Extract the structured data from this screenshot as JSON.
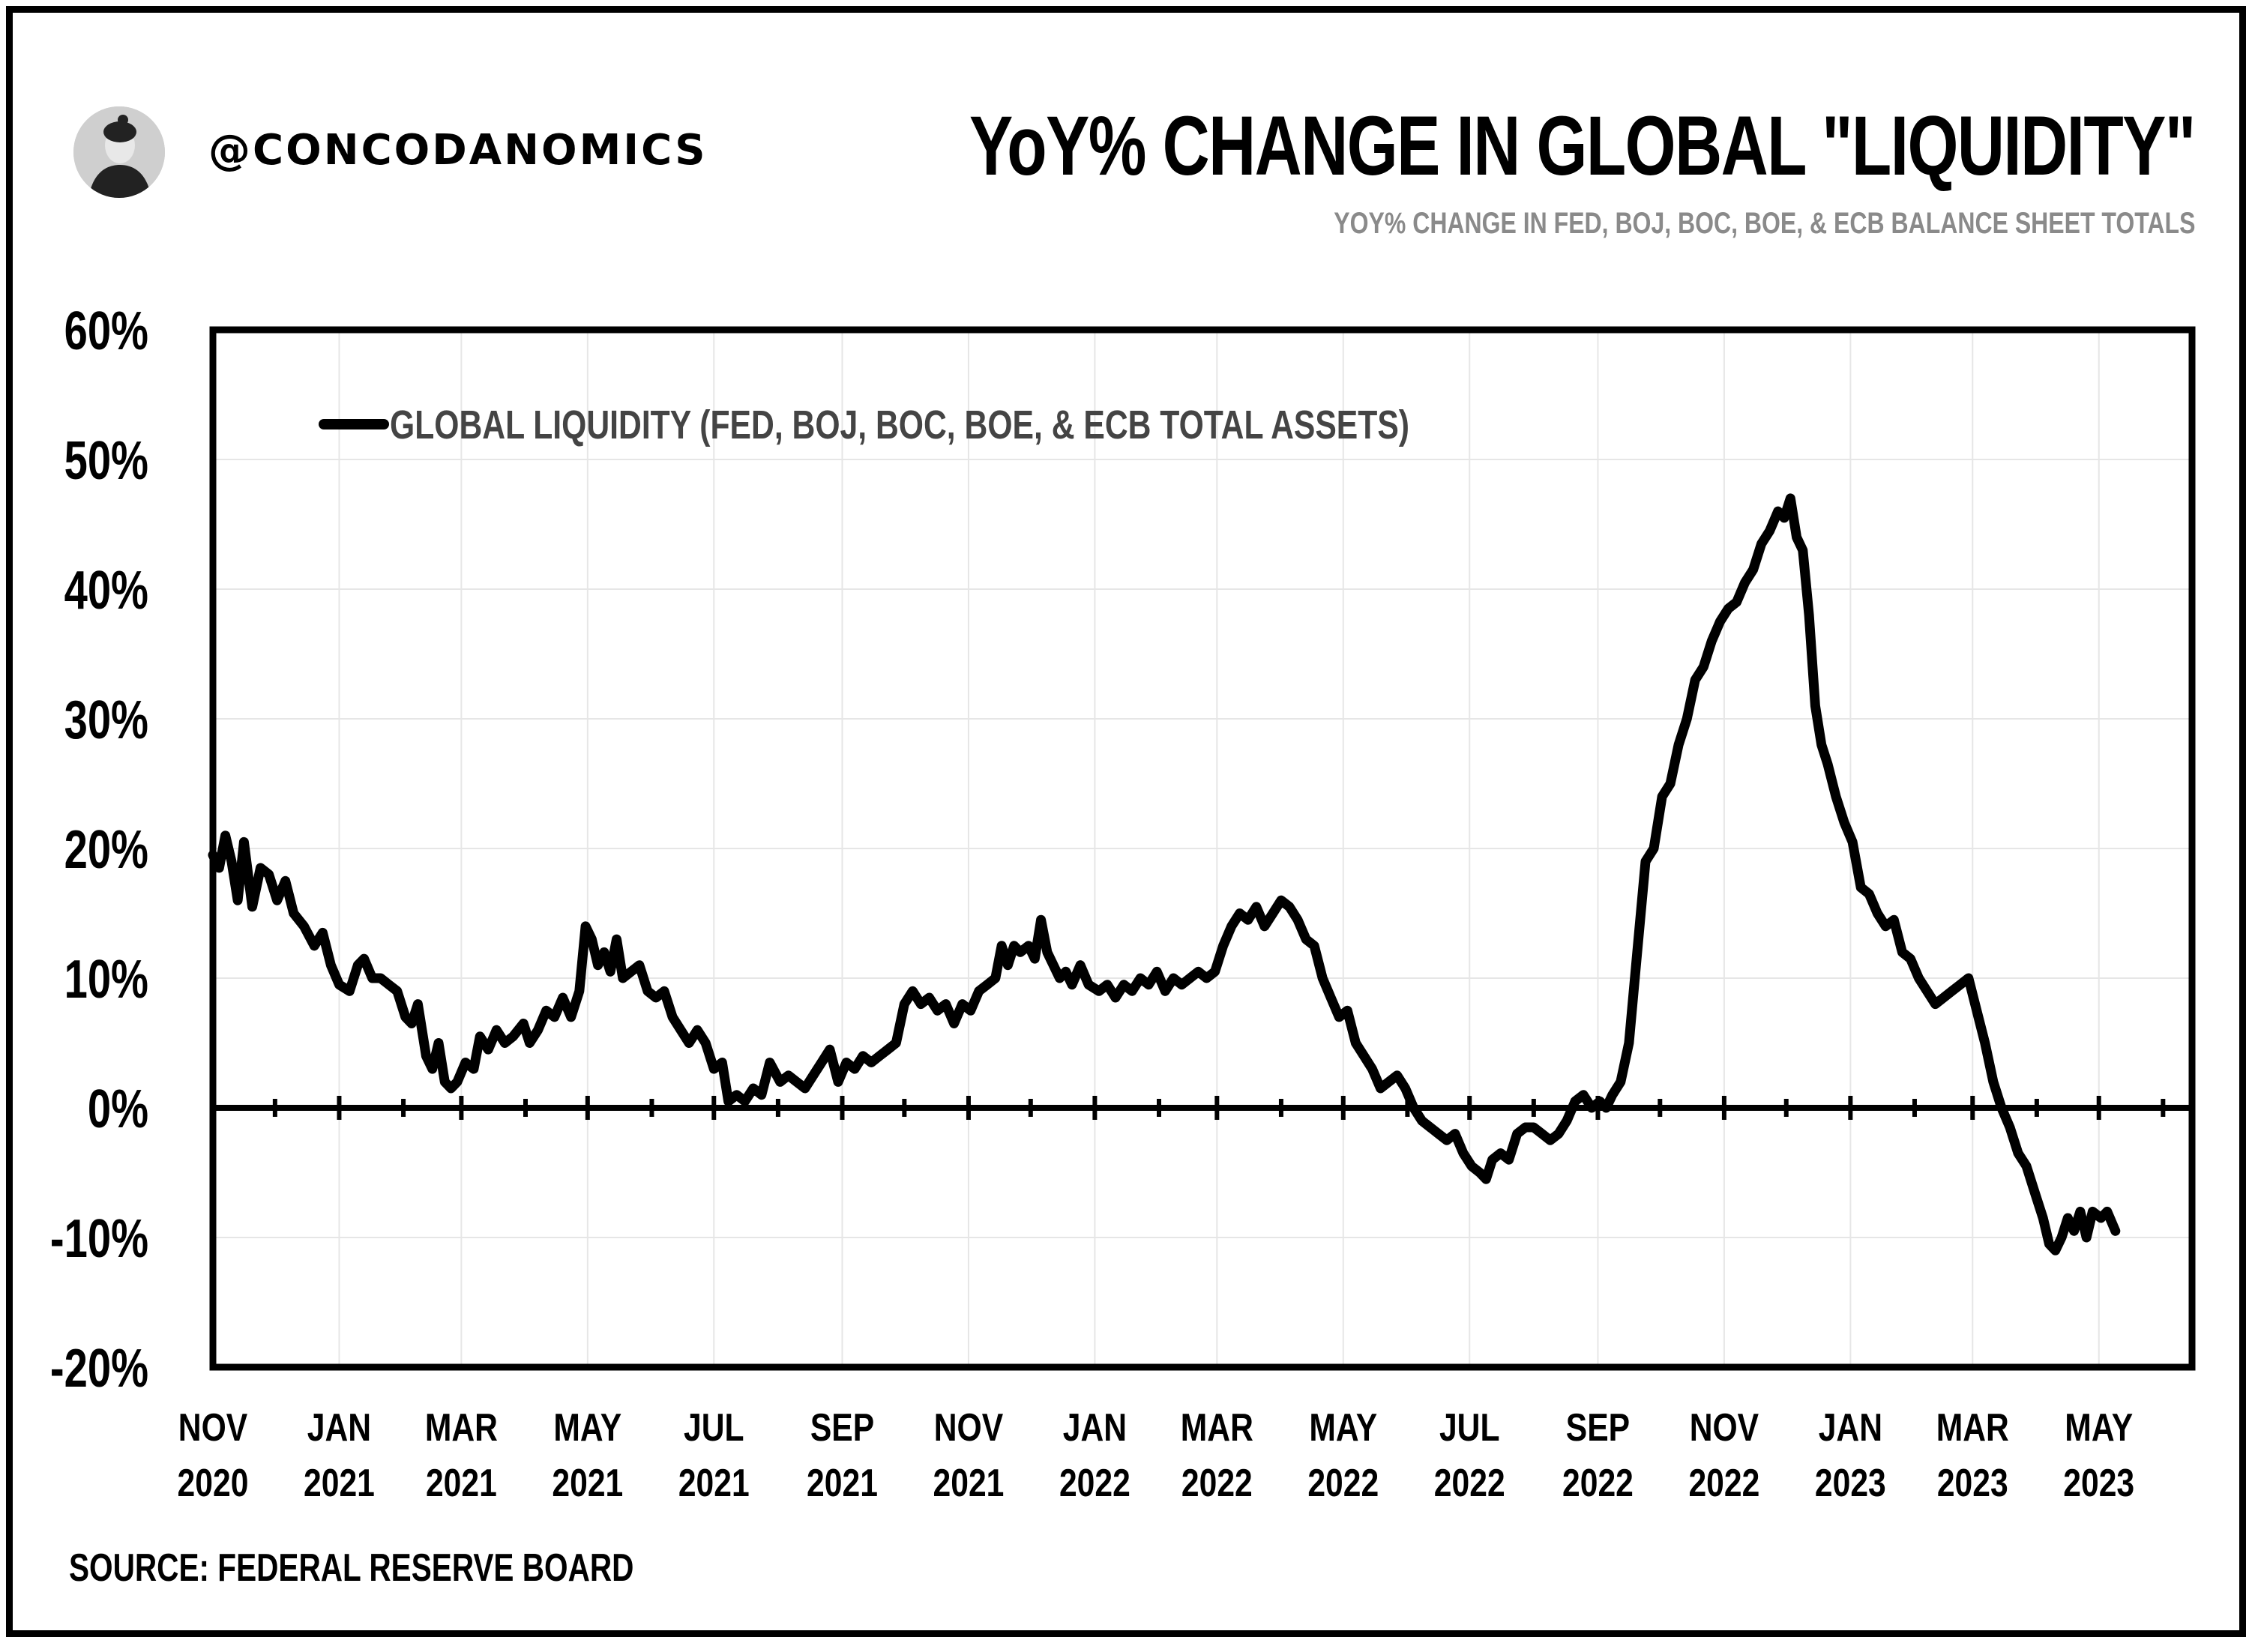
{
  "header": {
    "handle": "@CONCODANOMICS",
    "title": "YoY% CHANGE IN GLOBAL \"LIQUIDITY\"",
    "subtitle": "YOY% CHANGE IN FED, BOJ, BOC, BOE, & ECB BALANCE SHEET TOTALS"
  },
  "footer": {
    "source": "SOURCE: FEDERAL RESERVE BOARD"
  },
  "colors": {
    "line": "#000000",
    "grid": "#e6e6e6",
    "legend_text": "#444444",
    "subtitle": "#8a8a8a"
  },
  "chart_data": {
    "type": "line",
    "title": "YoY% CHANGE IN GLOBAL \"LIQUIDITY\"",
    "subtitle": "YOY% CHANGE IN FED, BOJ, BOC, BOE, & ECB BALANCE SHEET TOTALS",
    "ylim": [
      -20,
      60
    ],
    "yticks": [
      -20,
      -10,
      0,
      10,
      20,
      30,
      40,
      50,
      60
    ],
    "ytick_labels": [
      "-20%",
      "-10%",
      "0%",
      "10%",
      "20%",
      "30%",
      "40%",
      "50%",
      "60%"
    ],
    "xlim": [
      "2020-11-01",
      "2023-06-15"
    ],
    "xticks": [
      "2020-11-01",
      "2021-01-01",
      "2021-03-01",
      "2021-05-01",
      "2021-07-01",
      "2021-09-01",
      "2021-11-01",
      "2022-01-01",
      "2022-03-01",
      "2022-05-01",
      "2022-07-01",
      "2022-09-01",
      "2022-11-01",
      "2023-01-01",
      "2023-03-01",
      "2023-05-01"
    ],
    "xtick_labels": [
      [
        "NOV",
        "2020"
      ],
      [
        "JAN",
        "2021"
      ],
      [
        "MAR",
        "2021"
      ],
      [
        "MAY",
        "2021"
      ],
      [
        "JUL",
        "2021"
      ],
      [
        "SEP",
        "2021"
      ],
      [
        "NOV",
        "2021"
      ],
      [
        "JAN",
        "2022"
      ],
      [
        "MAR",
        "2022"
      ],
      [
        "MAY",
        "2022"
      ],
      [
        "JUL",
        "2022"
      ],
      [
        "SEP",
        "2022"
      ],
      [
        "NOV",
        "2022"
      ],
      [
        "JAN",
        "2023"
      ],
      [
        "MAR",
        "2023"
      ],
      [
        "MAY",
        "2023"
      ]
    ],
    "legend": {
      "position": "top-left"
    },
    "grid": true,
    "series": [
      {
        "name": "GLOBAL LIQUIDITY (FED, BOJ, BOC, BOE, & ECB TOTAL ASSETS)",
        "points": [
          [
            "2020-11-01",
            19.5
          ],
          [
            "2020-11-04",
            18.5
          ],
          [
            "2020-11-07",
            21
          ],
          [
            "2020-11-10",
            19
          ],
          [
            "2020-11-13",
            16
          ],
          [
            "2020-11-16",
            20.5
          ],
          [
            "2020-11-20",
            15.5
          ],
          [
            "2020-11-24",
            18.5
          ],
          [
            "2020-11-28",
            18
          ],
          [
            "2020-12-02",
            16
          ],
          [
            "2020-12-06",
            17.5
          ],
          [
            "2020-12-10",
            15
          ],
          [
            "2020-12-15",
            14
          ],
          [
            "2020-12-20",
            12.5
          ],
          [
            "2020-12-24",
            13.5
          ],
          [
            "2020-12-28",
            11
          ],
          [
            "2021-01-01",
            9.5
          ],
          [
            "2021-01-06",
            9
          ],
          [
            "2021-01-10",
            11
          ],
          [
            "2021-01-13",
            11.5
          ],
          [
            "2021-01-17",
            10
          ],
          [
            "2021-01-21",
            10
          ],
          [
            "2021-01-25",
            9.5
          ],
          [
            "2021-01-29",
            9
          ],
          [
            "2021-02-02",
            7
          ],
          [
            "2021-02-05",
            6.5
          ],
          [
            "2021-02-08",
            8
          ],
          [
            "2021-02-12",
            4
          ],
          [
            "2021-02-15",
            3
          ],
          [
            "2021-02-18",
            5
          ],
          [
            "2021-02-21",
            2
          ],
          [
            "2021-02-24",
            1.5
          ],
          [
            "2021-02-27",
            2
          ],
          [
            "2021-03-03",
            3.5
          ],
          [
            "2021-03-07",
            3
          ],
          [
            "2021-03-10",
            5.5
          ],
          [
            "2021-03-14",
            4.5
          ],
          [
            "2021-03-18",
            6
          ],
          [
            "2021-03-22",
            5
          ],
          [
            "2021-03-26",
            5.5
          ],
          [
            "2021-03-31",
            6.5
          ],
          [
            "2021-04-03",
            5
          ],
          [
            "2021-04-07",
            6
          ],
          [
            "2021-04-11",
            7.5
          ],
          [
            "2021-04-15",
            7
          ],
          [
            "2021-04-19",
            8.5
          ],
          [
            "2021-04-23",
            7
          ],
          [
            "2021-04-27",
            9
          ],
          [
            "2021-04-30",
            14
          ],
          [
            "2021-05-03",
            13
          ],
          [
            "2021-05-06",
            11
          ],
          [
            "2021-05-09",
            12
          ],
          [
            "2021-05-12",
            10.5
          ],
          [
            "2021-05-15",
            13
          ],
          [
            "2021-05-18",
            10
          ],
          [
            "2021-05-22",
            10.5
          ],
          [
            "2021-05-26",
            11
          ],
          [
            "2021-05-30",
            9
          ],
          [
            "2021-06-03",
            8.5
          ],
          [
            "2021-06-07",
            9
          ],
          [
            "2021-06-11",
            7
          ],
          [
            "2021-06-15",
            6
          ],
          [
            "2021-06-19",
            5
          ],
          [
            "2021-06-23",
            6
          ],
          [
            "2021-06-27",
            5
          ],
          [
            "2021-07-01",
            3
          ],
          [
            "2021-07-05",
            3.5
          ],
          [
            "2021-07-08",
            0.5
          ],
          [
            "2021-07-12",
            1
          ],
          [
            "2021-07-16",
            0.5
          ],
          [
            "2021-07-20",
            1.5
          ],
          [
            "2021-07-24",
            1
          ],
          [
            "2021-07-28",
            3.5
          ],
          [
            "2021-08-02",
            2
          ],
          [
            "2021-08-06",
            2.5
          ],
          [
            "2021-08-10",
            2
          ],
          [
            "2021-08-14",
            1.5
          ],
          [
            "2021-08-18",
            2.5
          ],
          [
            "2021-08-22",
            3.5
          ],
          [
            "2021-08-26",
            4.5
          ],
          [
            "2021-08-30",
            2
          ],
          [
            "2021-09-03",
            3.5
          ],
          [
            "2021-09-07",
            3
          ],
          [
            "2021-09-11",
            4
          ],
          [
            "2021-09-15",
            3.5
          ],
          [
            "2021-09-19",
            4
          ],
          [
            "2021-09-23",
            4.5
          ],
          [
            "2021-09-27",
            5
          ],
          [
            "2021-10-01",
            8
          ],
          [
            "2021-10-05",
            9
          ],
          [
            "2021-10-09",
            8
          ],
          [
            "2021-10-13",
            8.5
          ],
          [
            "2021-10-17",
            7.5
          ],
          [
            "2021-10-21",
            8
          ],
          [
            "2021-10-25",
            6.5
          ],
          [
            "2021-10-29",
            8
          ],
          [
            "2021-11-02",
            7.5
          ],
          [
            "2021-11-06",
            9
          ],
          [
            "2021-11-10",
            9.5
          ],
          [
            "2021-11-14",
            10
          ],
          [
            "2021-11-17",
            12.5
          ],
          [
            "2021-11-20",
            11
          ],
          [
            "2021-11-23",
            12.5
          ],
          [
            "2021-11-26",
            12
          ],
          [
            "2021-11-30",
            12.5
          ],
          [
            "2021-12-03",
            11.5
          ],
          [
            "2021-12-06",
            14.5
          ],
          [
            "2021-12-09",
            12
          ],
          [
            "2021-12-12",
            11
          ],
          [
            "2021-12-15",
            10
          ],
          [
            "2021-12-18",
            10.5
          ],
          [
            "2021-12-21",
            9.5
          ],
          [
            "2021-12-25",
            11
          ],
          [
            "2021-12-29",
            9.5
          ],
          [
            "2022-01-03",
            9
          ],
          [
            "2022-01-07",
            9.5
          ],
          [
            "2022-01-11",
            8.5
          ],
          [
            "2022-01-15",
            9.5
          ],
          [
            "2022-01-19",
            9
          ],
          [
            "2022-01-23",
            10
          ],
          [
            "2022-01-27",
            9.5
          ],
          [
            "2022-01-31",
            10.5
          ],
          [
            "2022-02-04",
            9
          ],
          [
            "2022-02-08",
            10
          ],
          [
            "2022-02-12",
            9.5
          ],
          [
            "2022-02-16",
            10
          ],
          [
            "2022-02-20",
            10.5
          ],
          [
            "2022-02-24",
            10
          ],
          [
            "2022-02-28",
            10.5
          ],
          [
            "2022-03-04",
            12.5
          ],
          [
            "2022-03-08",
            14
          ],
          [
            "2022-03-12",
            15
          ],
          [
            "2022-03-16",
            14.5
          ],
          [
            "2022-03-20",
            15.5
          ],
          [
            "2022-03-24",
            14
          ],
          [
            "2022-03-28",
            15
          ],
          [
            "2022-04-01",
            16
          ],
          [
            "2022-04-05",
            15.5
          ],
          [
            "2022-04-09",
            14.5
          ],
          [
            "2022-04-13",
            13
          ],
          [
            "2022-04-17",
            12.5
          ],
          [
            "2022-04-21",
            10
          ],
          [
            "2022-04-25",
            8.5
          ],
          [
            "2022-04-29",
            7
          ],
          [
            "2022-05-03",
            7.5
          ],
          [
            "2022-05-07",
            5
          ],
          [
            "2022-05-11",
            4
          ],
          [
            "2022-05-15",
            3
          ],
          [
            "2022-05-19",
            1.5
          ],
          [
            "2022-05-23",
            2
          ],
          [
            "2022-05-27",
            2.5
          ],
          [
            "2022-05-31",
            1.5
          ],
          [
            "2022-06-04",
            0
          ],
          [
            "2022-06-08",
            -1
          ],
          [
            "2022-06-12",
            -1.5
          ],
          [
            "2022-06-16",
            -2
          ],
          [
            "2022-06-20",
            -2.5
          ],
          [
            "2022-06-24",
            -2
          ],
          [
            "2022-06-28",
            -3.5
          ],
          [
            "2022-07-02",
            -4.5
          ],
          [
            "2022-07-06",
            -5
          ],
          [
            "2022-07-09",
            -5.5
          ],
          [
            "2022-07-12",
            -4
          ],
          [
            "2022-07-16",
            -3.5
          ],
          [
            "2022-07-20",
            -4
          ],
          [
            "2022-07-24",
            -2
          ],
          [
            "2022-07-28",
            -1.5
          ],
          [
            "2022-08-01",
            -1.5
          ],
          [
            "2022-08-05",
            -2
          ],
          [
            "2022-08-09",
            -2.5
          ],
          [
            "2022-08-13",
            -2
          ],
          [
            "2022-08-17",
            -1
          ],
          [
            "2022-08-21",
            0.5
          ],
          [
            "2022-08-25",
            1
          ],
          [
            "2022-08-29",
            0
          ],
          [
            "2022-09-02",
            0.5
          ],
          [
            "2022-09-05",
            0
          ],
          [
            "2022-09-08",
            1
          ],
          [
            "2022-09-12",
            2
          ],
          [
            "2022-09-16",
            5
          ],
          [
            "2022-09-20",
            12
          ],
          [
            "2022-09-24",
            19
          ],
          [
            "2022-09-28",
            20
          ],
          [
            "2022-10-02",
            24
          ],
          [
            "2022-10-06",
            25
          ],
          [
            "2022-10-10",
            28
          ],
          [
            "2022-10-14",
            30
          ],
          [
            "2022-10-18",
            33
          ],
          [
            "2022-10-22",
            34
          ],
          [
            "2022-10-26",
            36
          ],
          [
            "2022-10-30",
            37.5
          ],
          [
            "2022-11-03",
            38.5
          ],
          [
            "2022-11-07",
            39
          ],
          [
            "2022-11-11",
            40.5
          ],
          [
            "2022-11-15",
            41.5
          ],
          [
            "2022-11-19",
            43.5
          ],
          [
            "2022-11-23",
            44.5
          ],
          [
            "2022-11-27",
            46
          ],
          [
            "2022-11-30",
            45.5
          ],
          [
            "2022-12-03",
            47
          ],
          [
            "2022-12-06",
            44
          ],
          [
            "2022-12-09",
            43
          ],
          [
            "2022-12-12",
            38
          ],
          [
            "2022-12-15",
            31
          ],
          [
            "2022-12-18",
            28
          ],
          [
            "2022-12-21",
            26.5
          ],
          [
            "2022-12-25",
            24
          ],
          [
            "2022-12-29",
            22
          ],
          [
            "2023-01-02",
            20.5
          ],
          [
            "2023-01-06",
            17
          ],
          [
            "2023-01-10",
            16.5
          ],
          [
            "2023-01-14",
            15
          ],
          [
            "2023-01-18",
            14
          ],
          [
            "2023-01-22",
            14.5
          ],
          [
            "2023-01-26",
            12
          ],
          [
            "2023-01-30",
            11.5
          ],
          [
            "2023-02-03",
            10
          ],
          [
            "2023-02-07",
            9
          ],
          [
            "2023-02-11",
            8
          ],
          [
            "2023-02-15",
            8.5
          ],
          [
            "2023-02-19",
            9
          ],
          [
            "2023-02-23",
            9.5
          ],
          [
            "2023-02-27",
            10
          ],
          [
            "2023-03-03",
            7.5
          ],
          [
            "2023-03-07",
            5
          ],
          [
            "2023-03-11",
            2
          ],
          [
            "2023-03-15",
            0
          ],
          [
            "2023-03-19",
            -1.5
          ],
          [
            "2023-03-23",
            -3.5
          ],
          [
            "2023-03-27",
            -4.5
          ],
          [
            "2023-03-31",
            -6.5
          ],
          [
            "2023-04-04",
            -8.5
          ],
          [
            "2023-04-07",
            -10.5
          ],
          [
            "2023-04-10",
            -11
          ],
          [
            "2023-04-13",
            -10
          ],
          [
            "2023-04-16",
            -8.5
          ],
          [
            "2023-04-19",
            -9.5
          ],
          [
            "2023-04-22",
            -8
          ],
          [
            "2023-04-25",
            -10
          ],
          [
            "2023-04-28",
            -8
          ],
          [
            "2023-05-02",
            -8.5
          ],
          [
            "2023-05-05",
            -8
          ],
          [
            "2023-05-09",
            -9.5
          ]
        ]
      }
    ]
  }
}
